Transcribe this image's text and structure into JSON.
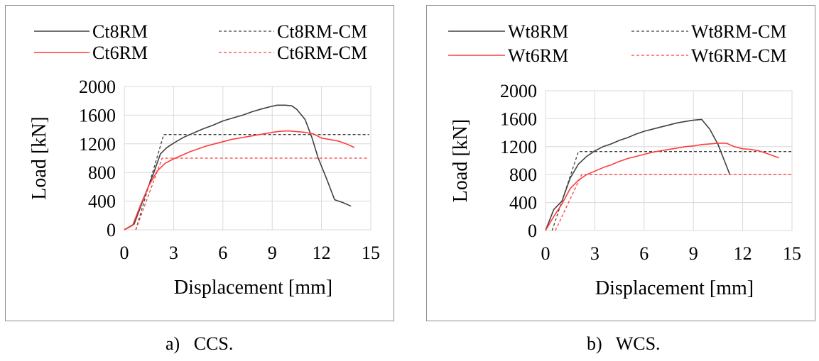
{
  "chart_data": [
    {
      "type": "line",
      "caption": "a)   CCS.",
      "xlabel": "Displacement [mm]",
      "ylabel": "Load [kN]",
      "xlim": [
        0,
        15
      ],
      "ylim": [
        0,
        2000
      ],
      "xticks": [
        0,
        3,
        6,
        9,
        12,
        15
      ],
      "yticks": [
        0,
        400,
        800,
        1200,
        1600,
        2000
      ],
      "grid": true,
      "legend_position": "top",
      "series": [
        {
          "name": "Ct8RM",
          "color": "#404040",
          "dash": "solid",
          "x": [
            0,
            0.6,
            1.2,
            1.8,
            2.2,
            2.6,
            3,
            3.6,
            4.2,
            4.8,
            5.4,
            6,
            6.6,
            7.2,
            7.8,
            8.4,
            9,
            9.3,
            9.8,
            10.2,
            10.5,
            11,
            11.4,
            11.8,
            12.3,
            12.8,
            13.3,
            13.8
          ],
          "y": [
            0,
            80,
            450,
            800,
            1060,
            1150,
            1210,
            1290,
            1350,
            1410,
            1460,
            1520,
            1560,
            1600,
            1650,
            1690,
            1725,
            1740,
            1740,
            1730,
            1680,
            1540,
            1300,
            1000,
            720,
            420,
            380,
            330
          ]
        },
        {
          "name": "Ct8RM-CM",
          "color": "#404040",
          "dash": "dashed",
          "x": [
            0.7,
            2.4,
            14.9
          ],
          "y": [
            0,
            1330,
            1330
          ]
        },
        {
          "name": "Ct6RM",
          "color": "#ff3b3b",
          "dash": "solid",
          "x": [
            0,
            0.5,
            1,
            1.5,
            2,
            2.5,
            3,
            3.5,
            4,
            4.5,
            5,
            5.5,
            6,
            6.5,
            7,
            7.5,
            8,
            8.5,
            9,
            9.5,
            10,
            10.5,
            11,
            11.5,
            12,
            12.5,
            13,
            13.5,
            14
          ],
          "y": [
            0,
            60,
            350,
            620,
            820,
            930,
            990,
            1040,
            1090,
            1130,
            1170,
            1200,
            1230,
            1260,
            1280,
            1300,
            1320,
            1340,
            1360,
            1375,
            1380,
            1370,
            1360,
            1340,
            1280,
            1260,
            1240,
            1200,
            1150
          ]
        },
        {
          "name": "Ct6RM-CM",
          "color": "#ff3b3b",
          "dash": "dashed",
          "x": [
            0.7,
            2.3,
            14.9
          ],
          "y": [
            0,
            1000,
            1000
          ]
        }
      ]
    },
    {
      "type": "line",
      "caption": "b)   WCS.",
      "xlabel": "Displacement [mm]",
      "ylabel": "Load [kN]",
      "xlim": [
        0,
        15
      ],
      "ylim": [
        0,
        2000
      ],
      "xticks": [
        0,
        3,
        6,
        9,
        12,
        15
      ],
      "yticks": [
        0,
        400,
        800,
        1200,
        1600,
        2000
      ],
      "grid": true,
      "legend_position": "top",
      "series": [
        {
          "name": "Wt8RM",
          "color": "#404040",
          "dash": "solid",
          "x": [
            0,
            0.5,
            1,
            1.5,
            2,
            2.5,
            3,
            3.5,
            4,
            4.5,
            5,
            5.5,
            6,
            6.5,
            7,
            7.5,
            8,
            8.5,
            9,
            9.5,
            10,
            10.5,
            11.2
          ],
          "y": [
            0,
            300,
            420,
            750,
            950,
            1060,
            1140,
            1200,
            1240,
            1290,
            1330,
            1380,
            1420,
            1450,
            1480,
            1510,
            1540,
            1560,
            1580,
            1590,
            1450,
            1230,
            810
          ]
        },
        {
          "name": "Wt8RM-CM",
          "color": "#404040",
          "dash": "dashed",
          "x": [
            0.4,
            2.0,
            15
          ],
          "y": [
            0,
            1130,
            1130
          ]
        },
        {
          "name": "Wt6RM",
          "color": "#ff3b3b",
          "dash": "solid",
          "x": [
            0,
            0.5,
            1,
            1.5,
            2,
            2.5,
            3,
            3.5,
            4,
            4.5,
            5,
            5.5,
            6,
            6.5,
            7,
            7.5,
            8,
            8.5,
            9,
            9.5,
            10,
            10.5,
            11,
            11.5,
            12,
            12.5,
            13,
            13.5,
            14.2
          ],
          "y": [
            0,
            200,
            380,
            600,
            720,
            800,
            850,
            900,
            940,
            990,
            1030,
            1060,
            1090,
            1120,
            1140,
            1160,
            1180,
            1200,
            1210,
            1230,
            1240,
            1250,
            1250,
            1200,
            1170,
            1160,
            1140,
            1100,
            1040
          ]
        },
        {
          "name": "Wt6RM-CM",
          "color": "#ff3b3b",
          "dash": "dashed",
          "x": [
            0.6,
            2.2,
            15
          ],
          "y": [
            0,
            800,
            800
          ]
        }
      ]
    }
  ]
}
